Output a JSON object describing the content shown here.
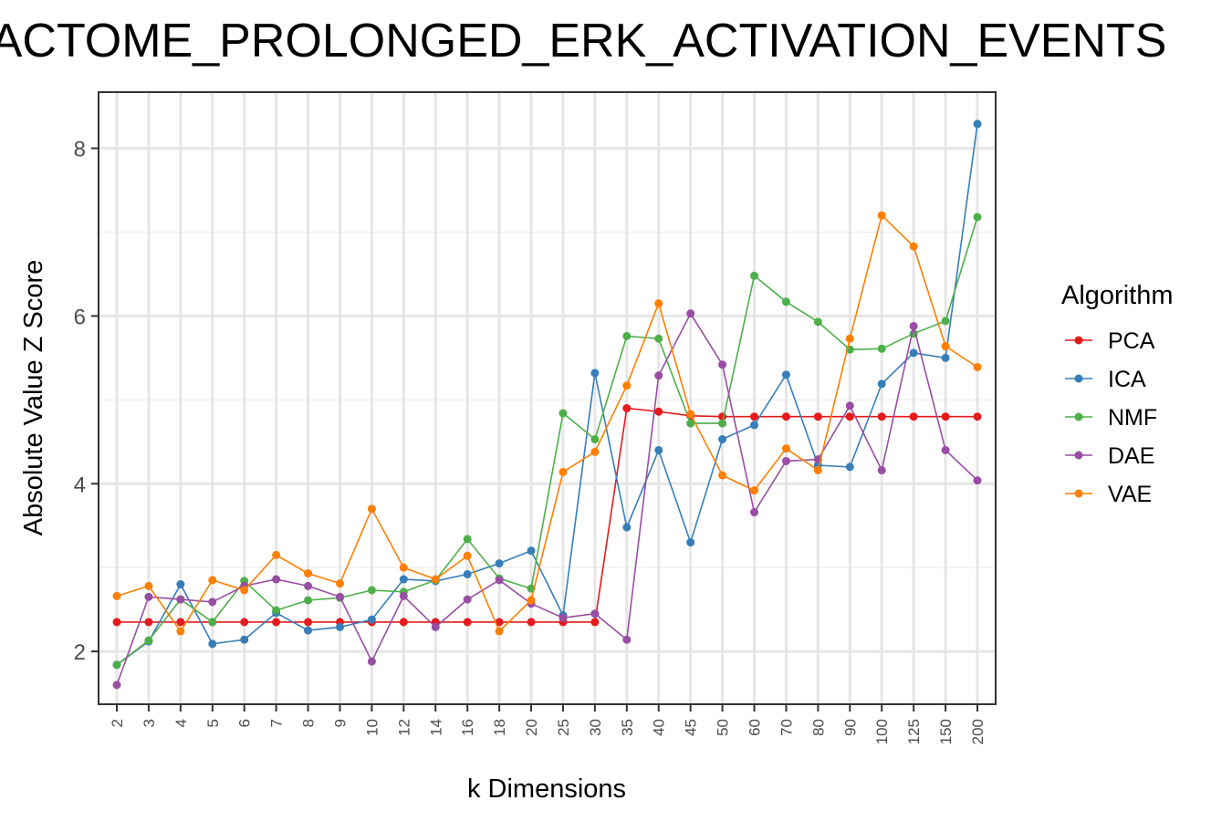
{
  "chart_data": {
    "type": "line",
    "title": "REACTOME_PROLONGED_ERK_ACTIVATION_EVENTS",
    "xlabel": "k Dimensions",
    "ylabel": "Absolute Value Z Score",
    "categories": [
      "2",
      "3",
      "4",
      "5",
      "6",
      "7",
      "8",
      "9",
      "10",
      "12",
      "14",
      "16",
      "18",
      "20",
      "25",
      "30",
      "35",
      "40",
      "45",
      "50",
      "60",
      "70",
      "80",
      "90",
      "100",
      "125",
      "150",
      "200"
    ],
    "yticks": [
      2,
      4,
      6,
      8
    ],
    "ylim": [
      1.37,
      8.67
    ],
    "grid": true,
    "legend": {
      "title": "Algorithm",
      "placement": "right"
    },
    "series": [
      {
        "name": "PCA",
        "color": "#e41a1c",
        "values": [
          2.35,
          2.35,
          2.35,
          2.35,
          2.35,
          2.35,
          2.35,
          2.35,
          2.35,
          2.35,
          2.35,
          2.35,
          2.35,
          2.35,
          2.35,
          2.35,
          4.9,
          4.86,
          4.81,
          4.8,
          4.8,
          4.8,
          4.8,
          4.8,
          4.8,
          4.8,
          4.8,
          4.8
        ]
      },
      {
        "name": "ICA",
        "color": "#377eb8",
        "values": [
          1.84,
          2.12,
          2.8,
          2.09,
          2.14,
          2.46,
          2.25,
          2.29,
          2.38,
          2.86,
          2.84,
          2.92,
          3.05,
          3.2,
          2.43,
          5.32,
          3.48,
          4.4,
          3.3,
          4.53,
          4.7,
          5.3,
          4.22,
          4.2,
          5.19,
          5.56,
          5.5,
          8.29
        ]
      },
      {
        "name": "NMF",
        "color": "#4daf4a",
        "values": [
          1.84,
          2.13,
          2.62,
          2.35,
          2.84,
          2.49,
          2.61,
          2.64,
          2.73,
          2.71,
          2.85,
          3.34,
          2.87,
          2.75,
          4.84,
          4.53,
          5.76,
          5.73,
          4.72,
          4.72,
          6.48,
          6.17,
          5.93,
          5.6,
          5.61,
          5.79,
          5.94,
          7.18
        ]
      },
      {
        "name": "DAE",
        "color": "#984ea3",
        "values": [
          1.6,
          2.65,
          2.62,
          2.59,
          2.78,
          2.86,
          2.78,
          2.65,
          1.88,
          2.66,
          2.29,
          2.62,
          2.85,
          2.57,
          2.4,
          2.45,
          2.14,
          5.29,
          6.03,
          5.42,
          3.66,
          4.27,
          4.29,
          4.93,
          4.16,
          5.88,
          4.4,
          4.04
        ]
      },
      {
        "name": "VAE",
        "color": "#ff7f00",
        "values": [
          2.66,
          2.78,
          2.24,
          2.85,
          2.73,
          3.15,
          2.93,
          2.81,
          3.7,
          3.0,
          2.86,
          3.14,
          2.24,
          2.61,
          4.14,
          4.38,
          5.17,
          6.15,
          4.83,
          4.1,
          3.92,
          4.42,
          4.16,
          5.73,
          7.2,
          6.83,
          5.64,
          5.39
        ]
      }
    ]
  }
}
